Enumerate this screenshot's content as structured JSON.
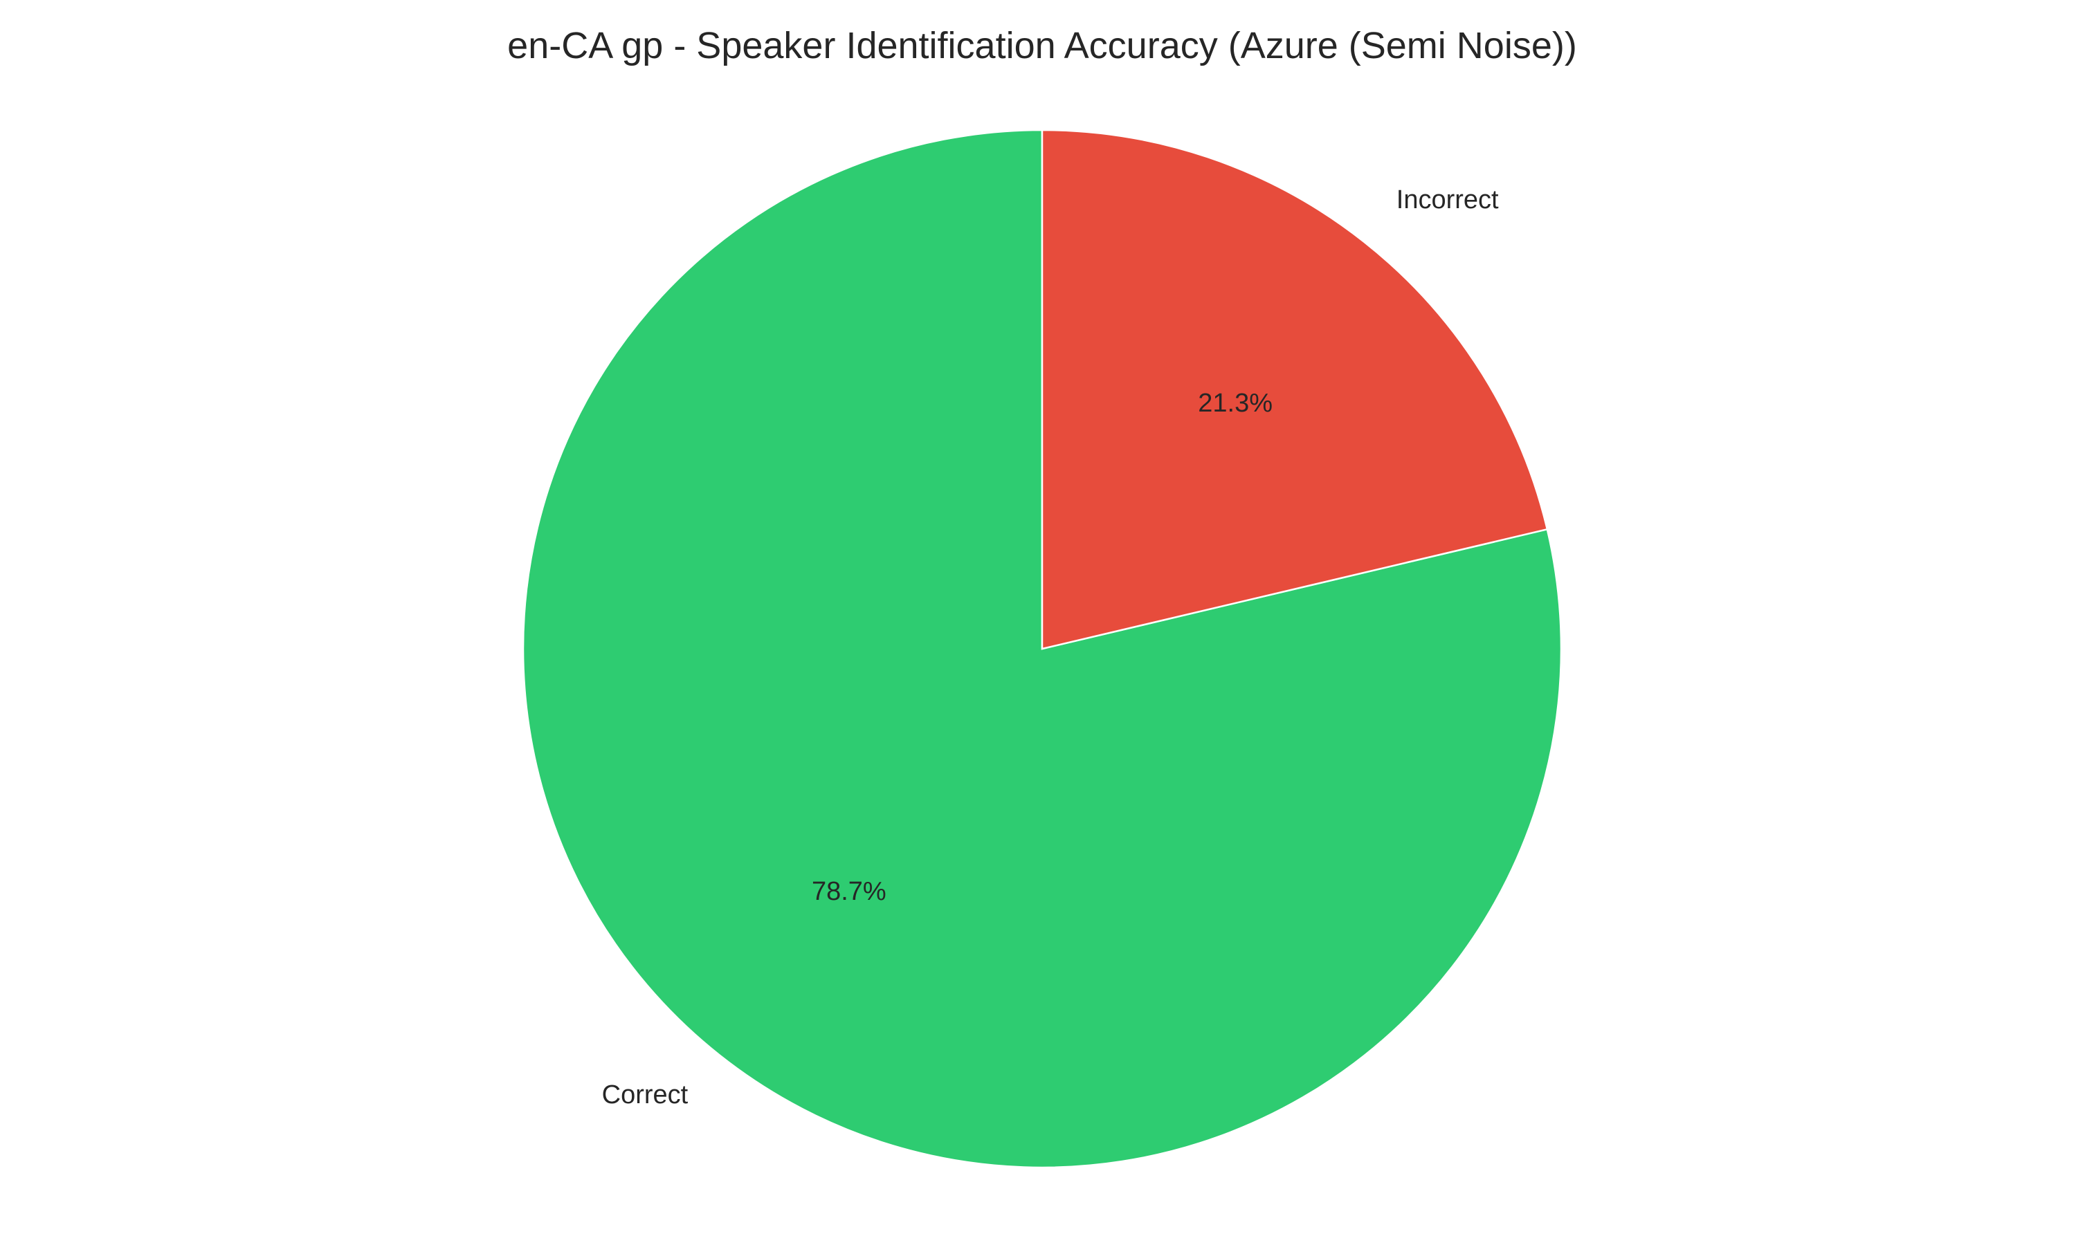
{
  "chart_data": {
    "type": "pie",
    "title": "en-CA gp - Speaker Identification Accuracy (Azure (Semi Noise))",
    "slices": [
      {
        "label": "Correct",
        "value": 78.7,
        "pct_label": "78.7%",
        "color": "#2ecc71"
      },
      {
        "label": "Incorrect",
        "value": 21.3,
        "pct_label": "21.3%",
        "color": "#e74c3c"
      }
    ],
    "start_angle": 90,
    "direction": "counterclockwise"
  }
}
